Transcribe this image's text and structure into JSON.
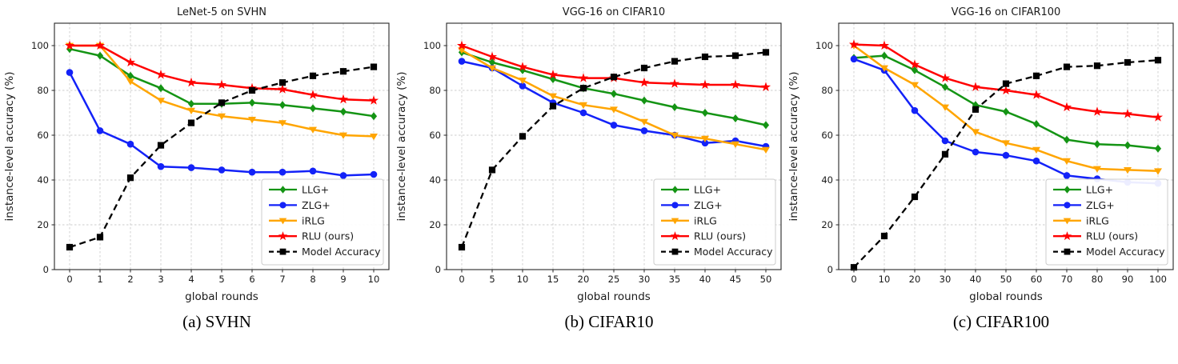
{
  "figure": {
    "xlabel": "global rounds",
    "ylabel": "instance-level accuracy (%)"
  },
  "chart_data": [
    {
      "type": "line",
      "title": "LeNet-5 on SVHN",
      "caption": "(a) SVHN",
      "xlabel": "global rounds",
      "ylabel": "instance-level accuracy (%)",
      "x": [
        0,
        1,
        2,
        3,
        4,
        5,
        6,
        7,
        8,
        9,
        10
      ],
      "xticks": [
        0,
        1,
        2,
        3,
        4,
        5,
        6,
        7,
        8,
        9,
        10
      ],
      "yticks": [
        0,
        20,
        40,
        60,
        80,
        100
      ],
      "xlim": [
        -0.5,
        10.5
      ],
      "ylim": [
        0,
        110
      ],
      "grid": true,
      "legend_position": "lower right",
      "series": [
        {
          "name": "LLG+",
          "color": "#149414",
          "marker": "diamond",
          "line": "solid",
          "values": [
            98.5,
            95.5,
            86.5,
            81,
            74,
            74,
            74.5,
            73.5,
            72,
            70.5,
            68.5
          ]
        },
        {
          "name": "ZLG+",
          "color": "#1322F8",
          "marker": "circle",
          "line": "solid",
          "values": [
            88,
            62,
            56,
            46,
            45.5,
            44.5,
            43.5,
            43.5,
            44,
            42,
            42.5
          ]
        },
        {
          "name": "iRLG",
          "color": "#FFA500",
          "marker": "triangle-down",
          "line": "solid",
          "values": [
            100,
            100,
            84,
            75.5,
            71,
            68.5,
            67,
            65.5,
            62.5,
            60,
            59.5
          ]
        },
        {
          "name": "RLU (ours)",
          "color": "#FF0000",
          "marker": "star",
          "line": "solid",
          "values": [
            100,
            100,
            92.5,
            87,
            83.5,
            82.5,
            81,
            80.5,
            78,
            76,
            75.5
          ]
        },
        {
          "name": "Model Accuracy",
          "color": "#000000",
          "marker": "square",
          "line": "dashed",
          "values": [
            10,
            14.5,
            41,
            55.5,
            65.5,
            74.5,
            80,
            83.5,
            86.5,
            88.5,
            90.5
          ]
        }
      ]
    },
    {
      "type": "line",
      "title": "VGG-16 on CIFAR10",
      "caption": "(b) CIFAR10",
      "xlabel": "global rounds",
      "ylabel": "instance-level accuracy (%)",
      "x": [
        0,
        5,
        10,
        15,
        20,
        25,
        30,
        35,
        40,
        45,
        50
      ],
      "xticks": [
        0,
        5,
        10,
        15,
        20,
        25,
        30,
        35,
        40,
        45,
        50
      ],
      "yticks": [
        0,
        20,
        40,
        60,
        80,
        100
      ],
      "xlim": [
        -2.5,
        52.5
      ],
      "ylim": [
        0,
        110
      ],
      "grid": true,
      "legend_position": "lower right",
      "series": [
        {
          "name": "LLG+",
          "color": "#149414",
          "marker": "diamond",
          "line": "solid",
          "values": [
            97,
            92.5,
            89,
            85,
            81,
            78.5,
            75.5,
            72.5,
            70,
            67.5,
            64.5
          ]
        },
        {
          "name": "ZLG+",
          "color": "#1322F8",
          "marker": "circle",
          "line": "solid",
          "values": [
            93,
            90,
            82,
            74.5,
            70,
            64.5,
            62,
            60,
            56.5,
            57.5,
            55
          ]
        },
        {
          "name": "iRLG",
          "color": "#FFA500",
          "marker": "triangle-down",
          "line": "solid",
          "values": [
            98,
            90,
            84.5,
            77.5,
            73.5,
            71.5,
            66,
            60,
            58.5,
            56,
            53.5
          ]
        },
        {
          "name": "RLU (ours)",
          "color": "#FF0000",
          "marker": "star",
          "line": "solid",
          "values": [
            100,
            95,
            90.5,
            87,
            85.5,
            85.5,
            83.5,
            83,
            82.5,
            82.5,
            81.5
          ]
        },
        {
          "name": "Model Accuracy",
          "color": "#000000",
          "marker": "square",
          "line": "dashed",
          "values": [
            10,
            44.5,
            59.5,
            73,
            81,
            86,
            90,
            93,
            95,
            95.5,
            97
          ]
        }
      ]
    },
    {
      "type": "line",
      "title": "VGG-16 on CIFAR100",
      "caption": "(c) CIFAR100",
      "xlabel": "global rounds",
      "ylabel": "instance-level accuracy (%)",
      "x": [
        0,
        10,
        20,
        30,
        40,
        50,
        60,
        70,
        80,
        90,
        100
      ],
      "xticks": [
        0,
        10,
        20,
        30,
        40,
        50,
        60,
        70,
        80,
        90,
        100
      ],
      "yticks": [
        0,
        20,
        40,
        60,
        80,
        100
      ],
      "xlim": [
        -5,
        105
      ],
      "ylim": [
        0,
        110
      ],
      "grid": true,
      "legend_position": "lower right",
      "series": [
        {
          "name": "LLG+",
          "color": "#149414",
          "marker": "diamond",
          "line": "solid",
          "values": [
            94.5,
            95.5,
            89,
            81.5,
            73.5,
            70.5,
            65,
            58,
            56,
            55.5,
            54
          ]
        },
        {
          "name": "ZLG+",
          "color": "#1322F8",
          "marker": "circle",
          "line": "solid",
          "values": [
            94,
            89,
            71,
            57.5,
            52.5,
            51,
            48.5,
            42,
            40.5,
            39,
            38.5
          ]
        },
        {
          "name": "iRLG",
          "color": "#FFA500",
          "marker": "triangle-down",
          "line": "solid",
          "values": [
            100,
            90,
            82.5,
            72.5,
            61.5,
            56.5,
            53.5,
            48.5,
            45,
            44.5,
            44
          ]
        },
        {
          "name": "RLU (ours)",
          "color": "#FF0000",
          "marker": "star",
          "line": "solid",
          "values": [
            100.5,
            100,
            91.5,
            85.5,
            81.5,
            80,
            78,
            72.5,
            70.5,
            69.5,
            68
          ]
        },
        {
          "name": "Model Accuracy",
          "color": "#000000",
          "marker": "square",
          "line": "dashed",
          "values": [
            1,
            15,
            32.5,
            51.5,
            71.5,
            83,
            86.5,
            90.5,
            91,
            92.5,
            93.5
          ]
        }
      ]
    }
  ]
}
